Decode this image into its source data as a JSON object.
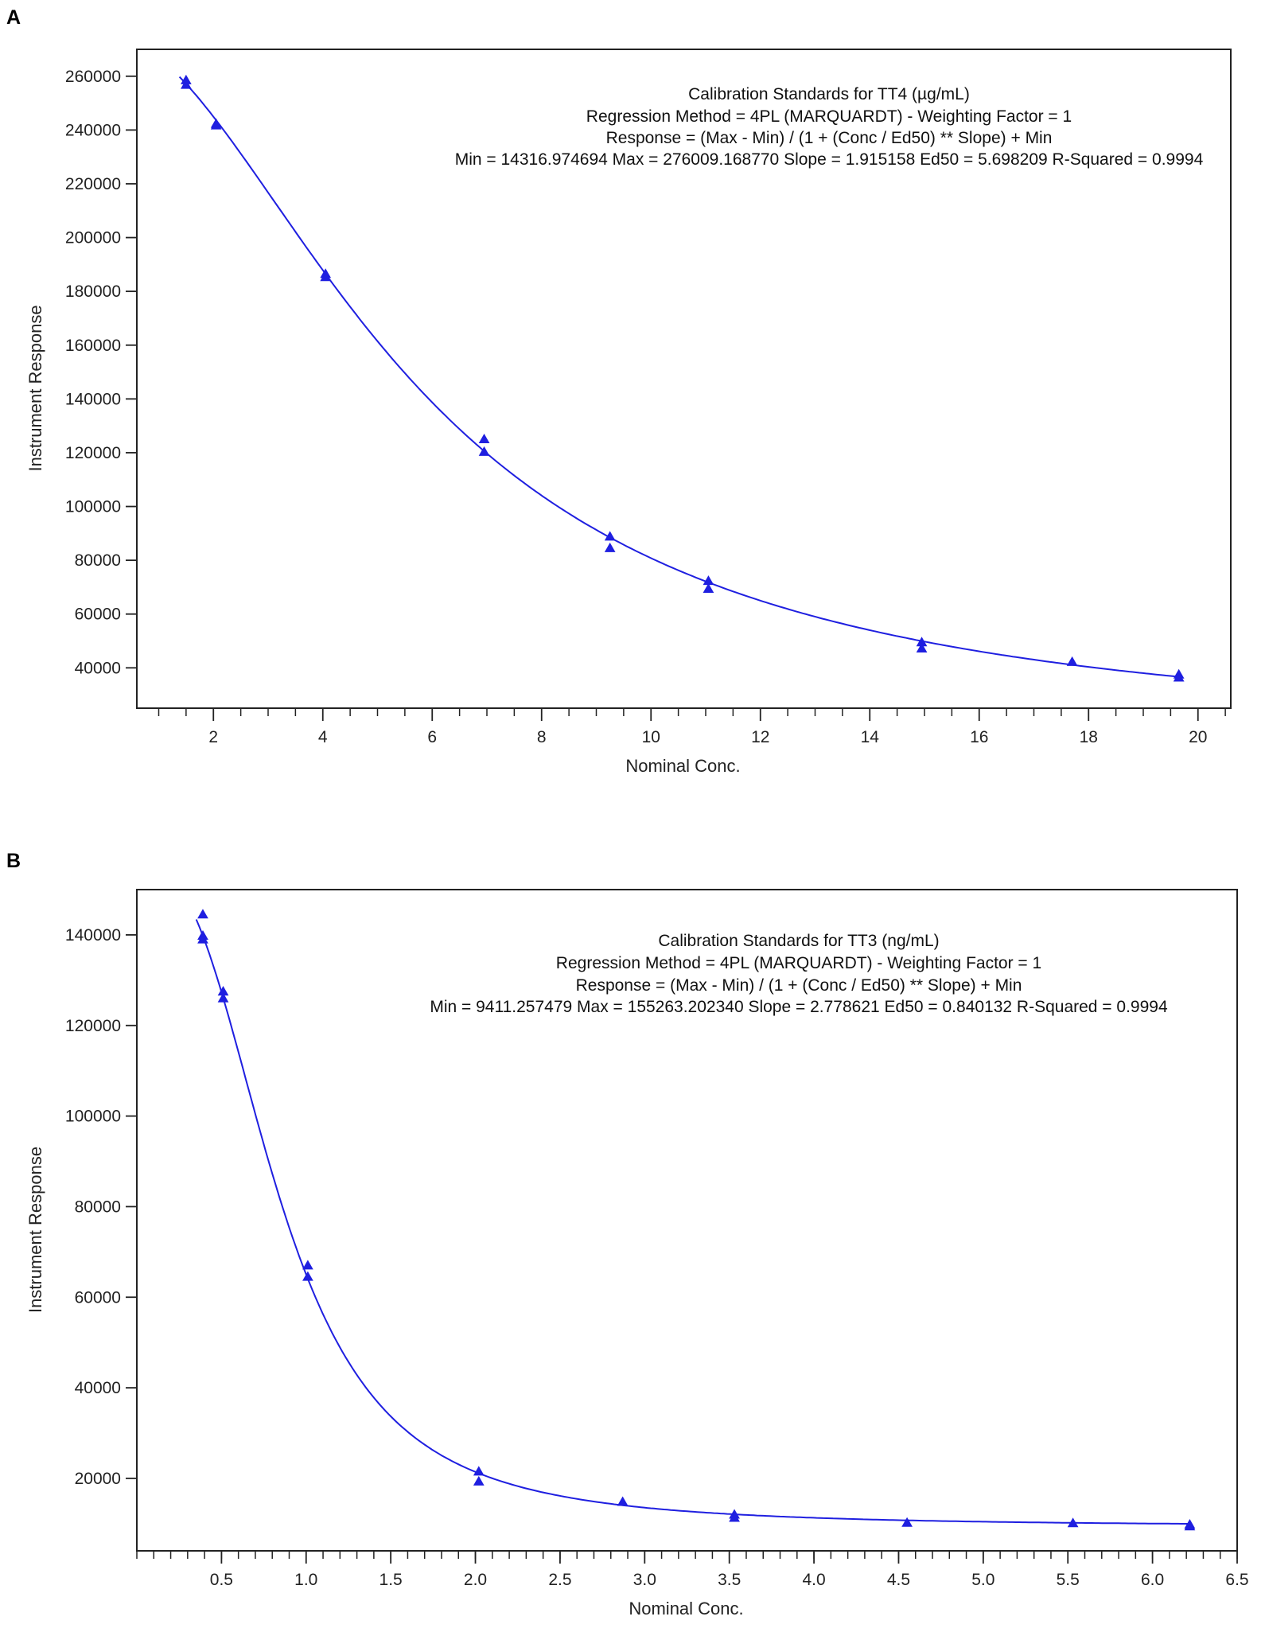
{
  "panels": {
    "a_label": "A",
    "b_label": "B"
  },
  "colors": {
    "series": "#1f1fe0",
    "axis": "#222222"
  },
  "chart_data": [
    {
      "type": "scatter",
      "fit": "4PL",
      "xlabel": "Nominal Conc.",
      "ylabel": "Instrument Response",
      "xlim": [
        0.6,
        20.6
      ],
      "ylim": [
        25000,
        270000
      ],
      "x_ticks": [
        2,
        4,
        6,
        8,
        10,
        12,
        14,
        16,
        18,
        20
      ],
      "y_ticks": [
        40000,
        60000,
        80000,
        100000,
        120000,
        140000,
        160000,
        180000,
        200000,
        220000,
        240000,
        260000
      ],
      "annotations": [
        "Calibration Standards for TT4 (µg/mL)",
        "Regression Method = 4PL (MARQUARDT) - Weighting Factor = 1",
        "Response = (Max - Min) / (1 + (Conc / Ed50) ** Slope) + Min",
        "Min = 14316.974694 Max = 276009.168770 Slope = 1.915158 Ed50 = 5.698209 R-Squared = 0.9994"
      ],
      "fit_params": {
        "min": 14316.974694,
        "max": 276009.16877,
        "slope": 1.915158,
        "ed50": 5.698209
      },
      "points": [
        [
          1.5,
          258500
        ],
        [
          1.5,
          256800
        ],
        [
          2.05,
          242300
        ],
        [
          2.05,
          241700
        ],
        [
          4.05,
          186500
        ],
        [
          4.05,
          185300
        ],
        [
          6.95,
          125000
        ],
        [
          6.95,
          120300
        ],
        [
          9.25,
          88800
        ],
        [
          9.25,
          84500
        ],
        [
          11.05,
          72300
        ],
        [
          11.05,
          69400
        ],
        [
          14.95,
          49500
        ],
        [
          14.95,
          47200
        ],
        [
          17.7,
          42200
        ],
        [
          19.65,
          37500
        ],
        [
          19.65,
          36400
        ]
      ]
    },
    {
      "type": "scatter",
      "fit": "4PL",
      "xlabel": "Nominal Conc.",
      "ylabel": "Instrument Response",
      "xlim": [
        0.0,
        6.5
      ],
      "ylim": [
        4000,
        150000
      ],
      "x_ticks": [
        "0.5",
        "1.0",
        "1.5",
        "2.0",
        "2.5",
        "3.0",
        "3.5",
        "4.0",
        "4.5",
        "5.0",
        "5.5",
        "6.0",
        "6.5"
      ],
      "y_ticks": [
        20000,
        40000,
        60000,
        80000,
        100000,
        120000,
        140000
      ],
      "annotations": [
        "Calibration Standards for TT3 (ng/mL)",
        "Regression Method = 4PL (MARQUARDT) - Weighting Factor = 1",
        "Response = (Max - Min) / (1 + (Conc / Ed50) ** Slope) + Min",
        "Min = 9411.257479 Max = 155263.202340 Slope = 2.778621 Ed50 = 0.840132 R-Squared = 0.9994"
      ],
      "fit_params": {
        "min": 9411.257479,
        "max": 155263.20234,
        "slope": 2.778621,
        "ed50": 0.840132
      },
      "points": [
        [
          0.39,
          144500
        ],
        [
          0.39,
          139800
        ],
        [
          0.39,
          139000
        ],
        [
          0.51,
          127500
        ],
        [
          0.51,
          126000
        ],
        [
          1.01,
          67000
        ],
        [
          1.01,
          64500
        ],
        [
          2.02,
          21500
        ],
        [
          2.02,
          19300
        ],
        [
          2.87,
          14800
        ],
        [
          3.53,
          12000
        ],
        [
          3.53,
          11300
        ],
        [
          4.55,
          10200
        ],
        [
          5.53,
          10100
        ],
        [
          6.22,
          9800
        ],
        [
          6.22,
          9400
        ]
      ]
    }
  ]
}
